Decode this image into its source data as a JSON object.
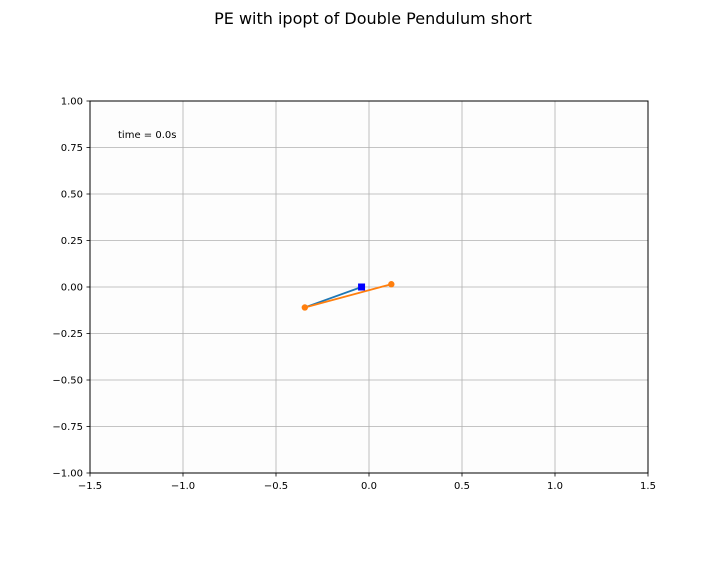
{
  "chart_data": {
    "type": "line",
    "title": "PE with ipopt of Double Pendulum short",
    "xlabel": "",
    "ylabel": "",
    "xlim": [
      -1.5,
      1.5
    ],
    "ylim": [
      -1.0,
      1.0
    ],
    "x_ticks": [
      -1.5,
      -1.0,
      -0.5,
      0.0,
      0.5,
      1.0,
      1.5
    ],
    "x_tick_labels": [
      "−1.5",
      "−1.0",
      "−0.5",
      "0.0",
      "0.5",
      "1.0",
      "1.5"
    ],
    "y_ticks": [
      1.0,
      0.75,
      0.5,
      0.25,
      0.0,
      -0.25,
      -0.5,
      -0.75,
      -1.0
    ],
    "y_tick_labels": [
      "1.00",
      "0.75",
      "0.50",
      "0.25",
      "0.00",
      "−0.25",
      "−0.50",
      "−0.75",
      "−1.00"
    ],
    "grid": true,
    "annotation": "time = 0.0s",
    "cart": {
      "x": -0.04,
      "y": 0.0,
      "color": "#0000ff"
    },
    "series": [
      {
        "x": [
          -0.04,
          -0.345
        ],
        "y": [
          0.0,
          -0.11
        ],
        "color": "#1f77b4"
      },
      {
        "x": [
          -0.345,
          0.12
        ],
        "y": [
          -0.11,
          0.015
        ],
        "color": "#ff7f0e"
      }
    ]
  }
}
